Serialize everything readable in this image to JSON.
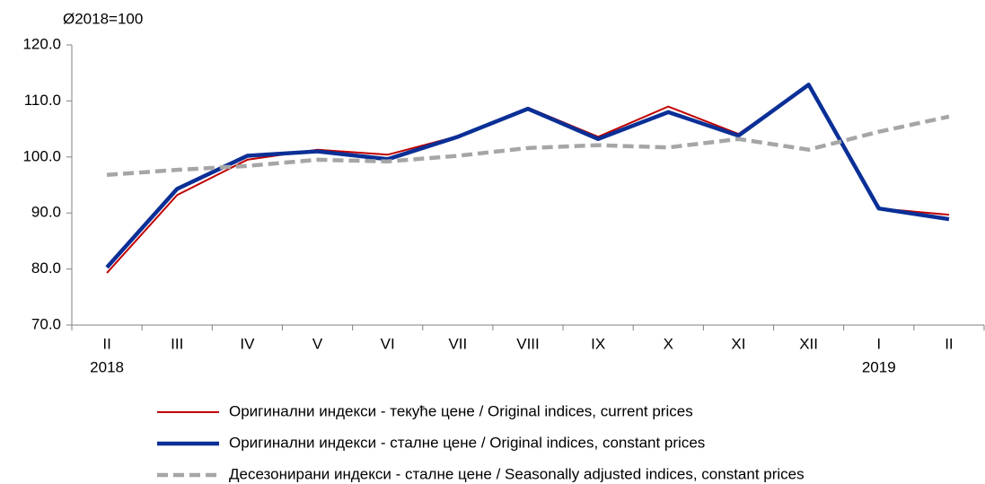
{
  "chart_data": {
    "type": "line",
    "y_unit_label": "Ø2018=100",
    "categories": [
      "II",
      "III",
      "IV",
      "V",
      "VI",
      "VII",
      "VIII",
      "IX",
      "X",
      "XI",
      "XII",
      "I",
      "II"
    ],
    "category_years": [
      "2018",
      null,
      null,
      null,
      null,
      null,
      null,
      null,
      null,
      null,
      null,
      "2019",
      null
    ],
    "ylim": [
      70,
      120
    ],
    "yticks": [
      {
        "value": 70,
        "label": "70.0"
      },
      {
        "value": 80,
        "label": "80.0"
      },
      {
        "value": 90,
        "label": "90.0"
      },
      {
        "value": 100,
        "label": "100.0"
      },
      {
        "value": 110,
        "label": "110.0"
      },
      {
        "value": 120,
        "label": "120.0"
      }
    ],
    "grid": false,
    "legend": "bottom",
    "series": [
      {
        "name": "Оригинални индекси - текуће цене / Original indices, current prices",
        "color": "#c00000",
        "style": "solid",
        "width": 2,
        "values": [
          79.3,
          93.2,
          99.5,
          101.3,
          100.4,
          103.7,
          108.8,
          103.6,
          109.0,
          104.1,
          112.9,
          90.8,
          89.7
        ]
      },
      {
        "name": "Оригинални индекси - сталне цене / Original indices, constant prices",
        "color": "#0a2f96",
        "style": "solid",
        "width": 4.5,
        "values": [
          80.3,
          94.3,
          100.2,
          101.0,
          99.6,
          103.6,
          108.6,
          103.2,
          108.0,
          103.8,
          112.9,
          90.8,
          88.9
        ]
      },
      {
        "name": "Десезонирани индекси - сталне цене / Seasonally adjusted indices, constant prices",
        "color": "#a6a6a6",
        "style": "dashed",
        "width": 4.5,
        "values": [
          96.8,
          97.7,
          98.4,
          99.5,
          99.2,
          100.2,
          101.6,
          102.1,
          101.7,
          103.2,
          101.3,
          104.5,
          107.2
        ]
      }
    ]
  }
}
